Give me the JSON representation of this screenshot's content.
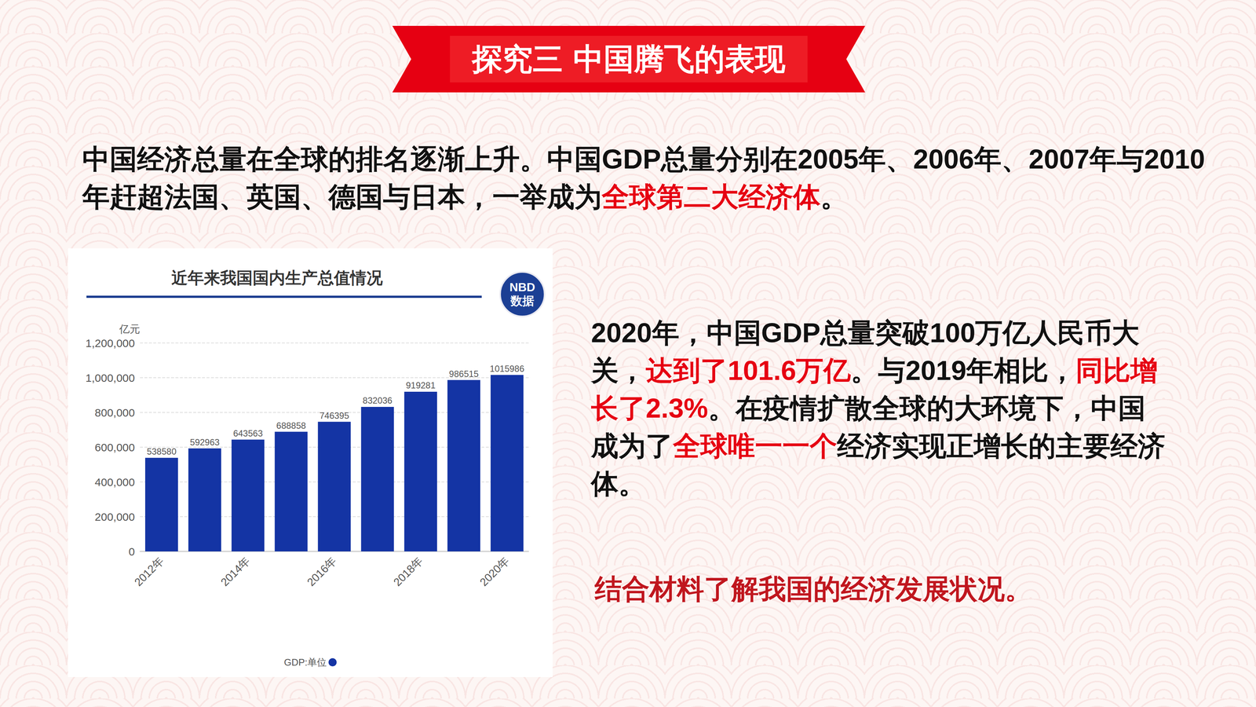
{
  "header": {
    "title": "探究三 中国腾飞的表现"
  },
  "paragraphs": [
    {
      "segments": [
        {
          "text": "中国经济总量在全球的排名逐渐上升。中国GDP总量分别在2005年、2006年、2007年与2010年赶超法国、英国、德国与日本，一举成为",
          "highlight": false
        },
        {
          "text": "全球第二大经济体",
          "highlight": true
        },
        {
          "text": "。",
          "highlight": false
        }
      ]
    },
    {
      "segments": [
        {
          "text": "2020年，中国GDP总量突破100万亿人民币大关，",
          "highlight": false
        },
        {
          "text": "达到了101.6万亿",
          "highlight": true
        },
        {
          "text": "。与2019年相比，",
          "highlight": false
        },
        {
          "text": "同比增长了2.3%",
          "highlight": true
        },
        {
          "text": "。在疫情扩散全球的大环境下，中国成为了",
          "highlight": false
        },
        {
          "text": "全球唯一一个",
          "highlight": true
        },
        {
          "text": "经济实现正增长的主要经济体。",
          "highlight": false
        }
      ]
    }
  ],
  "question": "结合材料了解我国的经济发展状况。",
  "badge": {
    "line1": "NBD",
    "line2": "数据"
  },
  "chart_data": {
    "type": "bar",
    "title": "近年来我国国内生产总值情况",
    "ylabel": "亿元",
    "categories": [
      "2012年",
      null,
      "2014年",
      null,
      "2016年",
      null,
      "2018年",
      null,
      "2020年"
    ],
    "series": [
      {
        "name": "GDP:单位",
        "color": "#1434a4",
        "values": [
          538580,
          592963,
          643563,
          688858,
          746395,
          832036,
          919281,
          986515,
          1015986
        ]
      }
    ],
    "ylim": [
      0,
      1200000
    ],
    "yticks": [
      0,
      {
        "value": 200000,
        "label": "200,000"
      },
      {
        "value": 400000,
        "label": "400,000"
      },
      {
        "value": 600000,
        "label": "600,000"
      },
      {
        "value": 800000,
        "label": "800,000"
      },
      {
        "value": 1000000,
        "label": "1,000,000"
      },
      {
        "value": 1200000,
        "label": "1,200,000"
      }
    ],
    "grid": true,
    "data_labels": true,
    "legend": "bottom"
  }
}
